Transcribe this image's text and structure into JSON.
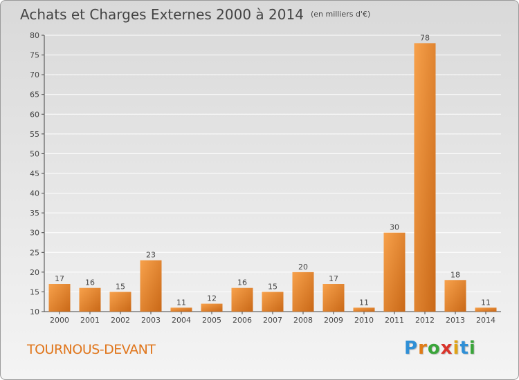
{
  "title": "Achats et Charges Externes 2000 à 2014",
  "subtitle": "(en milliers d'€)",
  "place_name": "TOURNOUS-DEVANT",
  "brand": {
    "letters": [
      "P",
      "r",
      "o",
      "x",
      "i",
      "t",
      "i"
    ],
    "colors": [
      "#2f8fd6",
      "#e07b16",
      "#3aa53a",
      "#d9342b",
      "#e0a316",
      "#2f8fd6",
      "#3aa53a"
    ]
  },
  "colors": {
    "bar_light": "#f7a14b",
    "bar_dark": "#c96817",
    "axis": "#444444",
    "grid": "#ffffff",
    "place": "#e0761c"
  },
  "chart_data": {
    "type": "bar",
    "categories": [
      "2000",
      "2001",
      "2002",
      "2003",
      "2004",
      "2005",
      "2006",
      "2007",
      "2008",
      "2009",
      "2010",
      "2011",
      "2012",
      "2013",
      "2014"
    ],
    "values": [
      17,
      16,
      15,
      23,
      11,
      12,
      16,
      15,
      20,
      17,
      11,
      30,
      78,
      18,
      11
    ],
    "title": "Achats et Charges Externes 2000 à 2014",
    "subtitle": "(en milliers d'€)",
    "xlabel": "",
    "ylabel": "",
    "ylim": [
      10,
      80
    ],
    "yticks": [
      10,
      15,
      20,
      25,
      30,
      35,
      40,
      45,
      50,
      55,
      60,
      65,
      70,
      75,
      80
    ],
    "grid": true,
    "data_labels": true
  }
}
